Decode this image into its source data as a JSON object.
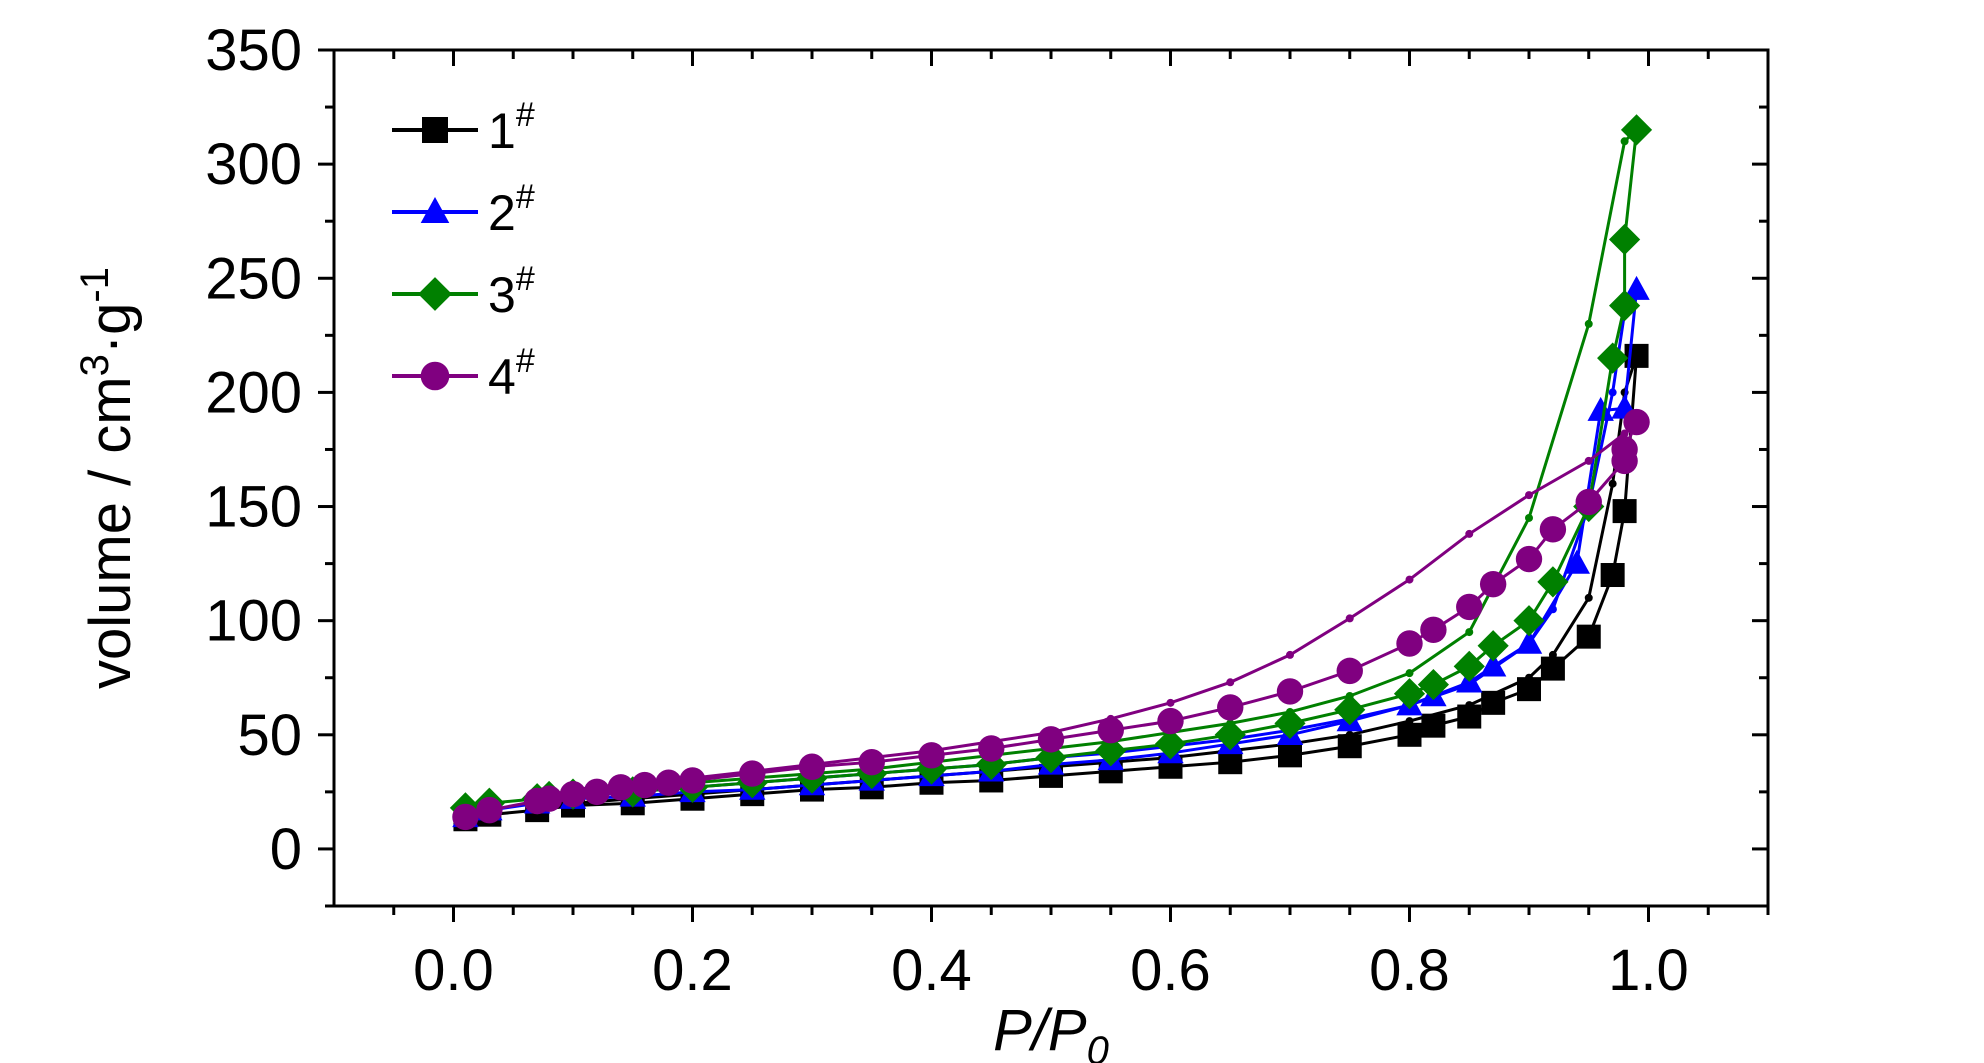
{
  "chart_data": {
    "type": "line",
    "xlabel": {
      "main": "P/P",
      "sub": "0"
    },
    "ylabel": {
      "prefix": "volume / cm",
      "sup1": "3",
      "mid": "·g",
      "sup2": "-1"
    },
    "xlim": [
      -0.1,
      1.1
    ],
    "ylim": [
      -25,
      350
    ],
    "xticks": [
      0.0,
      0.2,
      0.4,
      0.6,
      0.8,
      1.0
    ],
    "xtick_labels": [
      "0.0",
      "0.2",
      "0.4",
      "0.6",
      "0.8",
      "1.0"
    ],
    "yticks": [
      0,
      50,
      100,
      150,
      200,
      250,
      300,
      350
    ],
    "ytick_labels": [
      "0",
      "50",
      "100",
      "150",
      "200",
      "250",
      "300",
      "350"
    ],
    "grid": false,
    "legend_position": "top-left",
    "series": [
      {
        "name": "1",
        "name_sup": "#",
        "color": "#000000",
        "marker": "square",
        "adsorption": [
          [
            0.01,
            13
          ],
          [
            0.03,
            15
          ],
          [
            0.07,
            17
          ],
          [
            0.1,
            19
          ],
          [
            0.15,
            20
          ],
          [
            0.2,
            22
          ],
          [
            0.25,
            24
          ],
          [
            0.3,
            26
          ],
          [
            0.35,
            27
          ],
          [
            0.4,
            29
          ],
          [
            0.45,
            30
          ],
          [
            0.5,
            32
          ],
          [
            0.55,
            34
          ],
          [
            0.6,
            36
          ],
          [
            0.65,
            38
          ],
          [
            0.7,
            41
          ],
          [
            0.75,
            45
          ],
          [
            0.8,
            50
          ],
          [
            0.82,
            54
          ],
          [
            0.85,
            58
          ],
          [
            0.87,
            64
          ],
          [
            0.9,
            70
          ],
          [
            0.92,
            79
          ],
          [
            0.95,
            93
          ],
          [
            0.97,
            120
          ],
          [
            0.98,
            148
          ],
          [
            0.99,
            216
          ]
        ],
        "desorption": [
          [
            0.99,
            216
          ],
          [
            0.98,
            200
          ],
          [
            0.97,
            160
          ],
          [
            0.95,
            110
          ],
          [
            0.92,
            85
          ],
          [
            0.9,
            75
          ],
          [
            0.85,
            63
          ],
          [
            0.8,
            56
          ],
          [
            0.75,
            50
          ],
          [
            0.7,
            46
          ],
          [
            0.65,
            43
          ],
          [
            0.6,
            40
          ],
          [
            0.55,
            38
          ],
          [
            0.5,
            36
          ],
          [
            0.45,
            34
          ],
          [
            0.4,
            32
          ],
          [
            0.35,
            30
          ],
          [
            0.3,
            28
          ],
          [
            0.2,
            24
          ],
          [
            0.1,
            20
          ],
          [
            0.07,
            18
          ]
        ]
      },
      {
        "name": "2",
        "name_sup": "#",
        "color": "#0000ff",
        "marker": "triangle",
        "adsorption": [
          [
            0.01,
            14
          ],
          [
            0.03,
            17
          ],
          [
            0.07,
            20
          ],
          [
            0.1,
            22
          ],
          [
            0.15,
            23
          ],
          [
            0.2,
            25
          ],
          [
            0.25,
            26
          ],
          [
            0.3,
            28
          ],
          [
            0.35,
            30
          ],
          [
            0.4,
            32
          ],
          [
            0.45,
            34
          ],
          [
            0.5,
            37
          ],
          [
            0.55,
            39
          ],
          [
            0.6,
            42
          ],
          [
            0.65,
            46
          ],
          [
            0.7,
            50
          ],
          [
            0.75,
            56
          ],
          [
            0.8,
            63
          ],
          [
            0.82,
            67
          ],
          [
            0.85,
            73
          ],
          [
            0.87,
            80
          ],
          [
            0.9,
            90
          ],
          [
            0.94,
            125
          ],
          [
            0.96,
            192
          ],
          [
            0.98,
            193
          ],
          [
            0.99,
            245
          ]
        ],
        "desorption": [
          [
            0.99,
            245
          ],
          [
            0.98,
            235
          ],
          [
            0.97,
            200
          ],
          [
            0.95,
            150
          ],
          [
            0.92,
            105
          ],
          [
            0.9,
            90
          ],
          [
            0.85,
            72
          ],
          [
            0.8,
            63
          ],
          [
            0.75,
            57
          ],
          [
            0.7,
            52
          ],
          [
            0.65,
            48
          ],
          [
            0.6,
            45
          ],
          [
            0.55,
            42
          ],
          [
            0.5,
            40
          ],
          [
            0.45,
            37
          ],
          [
            0.4,
            35
          ],
          [
            0.35,
            33
          ],
          [
            0.3,
            31
          ],
          [
            0.2,
            27
          ],
          [
            0.1,
            23
          ],
          [
            0.07,
            21
          ]
        ]
      },
      {
        "name": "3",
        "name_sup": "#",
        "color": "#008000",
        "marker": "diamond",
        "adsorption": [
          [
            0.01,
            18
          ],
          [
            0.03,
            20
          ],
          [
            0.07,
            22
          ],
          [
            0.08,
            23
          ],
          [
            0.1,
            24
          ],
          [
            0.15,
            25
          ],
          [
            0.2,
            27
          ],
          [
            0.25,
            29
          ],
          [
            0.3,
            31
          ],
          [
            0.35,
            33
          ],
          [
            0.4,
            35
          ],
          [
            0.45,
            37
          ],
          [
            0.5,
            40
          ],
          [
            0.55,
            43
          ],
          [
            0.6,
            46
          ],
          [
            0.65,
            50
          ],
          [
            0.7,
            55
          ],
          [
            0.75,
            61
          ],
          [
            0.8,
            68
          ],
          [
            0.82,
            72
          ],
          [
            0.85,
            80
          ],
          [
            0.87,
            89
          ],
          [
            0.9,
            100
          ],
          [
            0.92,
            117
          ],
          [
            0.95,
            150
          ],
          [
            0.97,
            215
          ],
          [
            0.98,
            238
          ],
          [
            0.98,
            267
          ],
          [
            0.99,
            315
          ]
        ],
        "desorption": [
          [
            0.99,
            315
          ],
          [
            0.98,
            310
          ],
          [
            0.95,
            230
          ],
          [
            0.9,
            145
          ],
          [
            0.85,
            95
          ],
          [
            0.8,
            77
          ],
          [
            0.75,
            67
          ],
          [
            0.7,
            60
          ],
          [
            0.65,
            55
          ],
          [
            0.6,
            51
          ],
          [
            0.55,
            47
          ],
          [
            0.5,
            44
          ],
          [
            0.45,
            41
          ],
          [
            0.4,
            38
          ],
          [
            0.35,
            35
          ],
          [
            0.3,
            33
          ],
          [
            0.2,
            29
          ],
          [
            0.1,
            25
          ],
          [
            0.07,
            23
          ]
        ]
      },
      {
        "name": "4",
        "name_sup": "#",
        "color": "#800080",
        "marker": "circle",
        "adsorption": [
          [
            0.01,
            14
          ],
          [
            0.03,
            17
          ],
          [
            0.07,
            21
          ],
          [
            0.08,
            22
          ],
          [
            0.1,
            24
          ],
          [
            0.12,
            25
          ],
          [
            0.14,
            27
          ],
          [
            0.16,
            28
          ],
          [
            0.18,
            29
          ],
          [
            0.2,
            30
          ],
          [
            0.25,
            33
          ],
          [
            0.3,
            36
          ],
          [
            0.35,
            38
          ],
          [
            0.4,
            41
          ],
          [
            0.45,
            44
          ],
          [
            0.5,
            48
          ],
          [
            0.55,
            52
          ],
          [
            0.6,
            56
          ],
          [
            0.65,
            62
          ],
          [
            0.7,
            69
          ],
          [
            0.75,
            78
          ],
          [
            0.8,
            90
          ],
          [
            0.82,
            96
          ],
          [
            0.85,
            106
          ],
          [
            0.87,
            116
          ],
          [
            0.9,
            127
          ],
          [
            0.92,
            140
          ],
          [
            0.95,
            152
          ],
          [
            0.98,
            170
          ],
          [
            0.98,
            175
          ],
          [
            0.99,
            187
          ]
        ],
        "desorption": [
          [
            0.99,
            187
          ],
          [
            0.98,
            182
          ],
          [
            0.95,
            170
          ],
          [
            0.9,
            155
          ],
          [
            0.85,
            138
          ],
          [
            0.8,
            118
          ],
          [
            0.75,
            101
          ],
          [
            0.7,
            85
          ],
          [
            0.65,
            73
          ],
          [
            0.6,
            64
          ],
          [
            0.55,
            57
          ],
          [
            0.5,
            51
          ],
          [
            0.45,
            47
          ],
          [
            0.4,
            43
          ],
          [
            0.35,
            40
          ],
          [
            0.3,
            37
          ],
          [
            0.25,
            34
          ],
          [
            0.2,
            31
          ],
          [
            0.1,
            26
          ]
        ]
      }
    ]
  }
}
